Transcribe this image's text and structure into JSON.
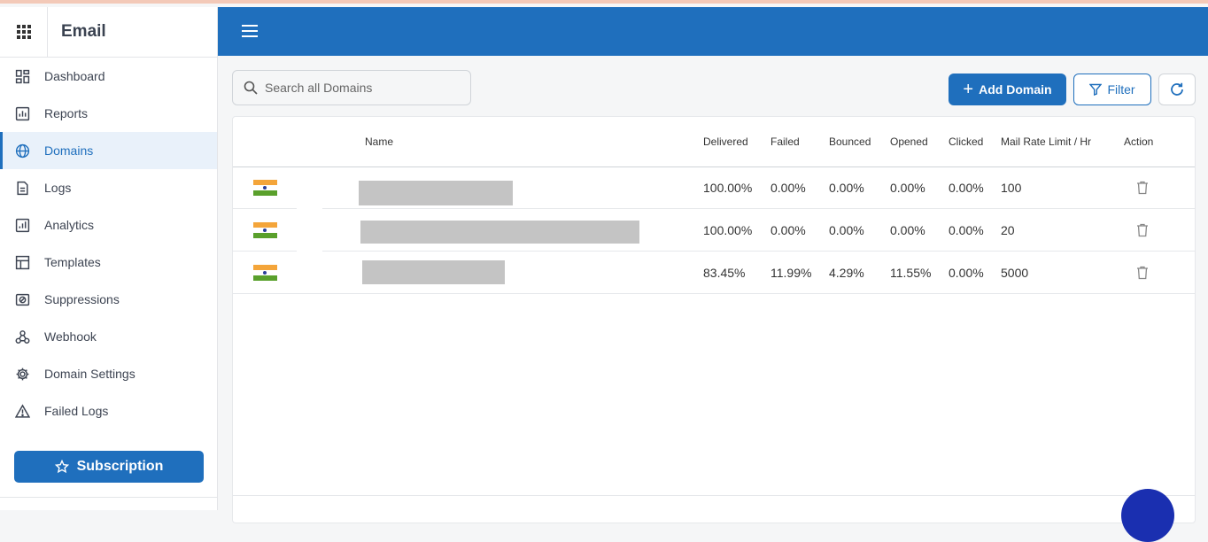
{
  "app": {
    "title": "Email"
  },
  "sidebar": {
    "items": [
      {
        "label": "Dashboard",
        "icon": "dashboard-icon",
        "active": false
      },
      {
        "label": "Reports",
        "icon": "bar-chart-icon",
        "active": false
      },
      {
        "label": "Domains",
        "icon": "globe-www-icon",
        "active": true
      },
      {
        "label": "Logs",
        "icon": "document-icon",
        "active": false
      },
      {
        "label": "Analytics",
        "icon": "analytics-icon",
        "active": false
      },
      {
        "label": "Templates",
        "icon": "template-icon",
        "active": false
      },
      {
        "label": "Suppressions",
        "icon": "suppression-icon",
        "active": false
      },
      {
        "label": "Webhook",
        "icon": "webhook-icon",
        "active": false
      },
      {
        "label": "Domain Settings",
        "icon": "gear-icon",
        "active": false
      },
      {
        "label": "Failed Logs",
        "icon": "warning-icon",
        "active": false
      }
    ],
    "subscription_label": "Subscription"
  },
  "toolbar": {
    "search_placeholder": "Search all Domains",
    "add_label": "Add Domain",
    "filter_label": "Filter"
  },
  "table": {
    "columns": [
      "Name",
      "Delivered",
      "Failed",
      "Bounced",
      "Opened",
      "Clicked",
      "Mail Rate Limit / Hr",
      "Action"
    ],
    "rows": [
      {
        "delivered": "100.00%",
        "failed": "0.00%",
        "bounced": "0.00%",
        "opened": "0.00%",
        "clicked": "0.00%",
        "rate": "100"
      },
      {
        "delivered": "100.00%",
        "failed": "0.00%",
        "bounced": "0.00%",
        "opened": "0.00%",
        "clicked": "0.00%",
        "rate": "20"
      },
      {
        "delivered": "83.45%",
        "failed": "11.99%",
        "bounced": "4.29%",
        "opened": "11.55%",
        "clicked": "0.00%",
        "rate": "5000"
      }
    ]
  },
  "colors": {
    "brand": "#1f6fbd",
    "active_bg": "#e9f1fa"
  }
}
